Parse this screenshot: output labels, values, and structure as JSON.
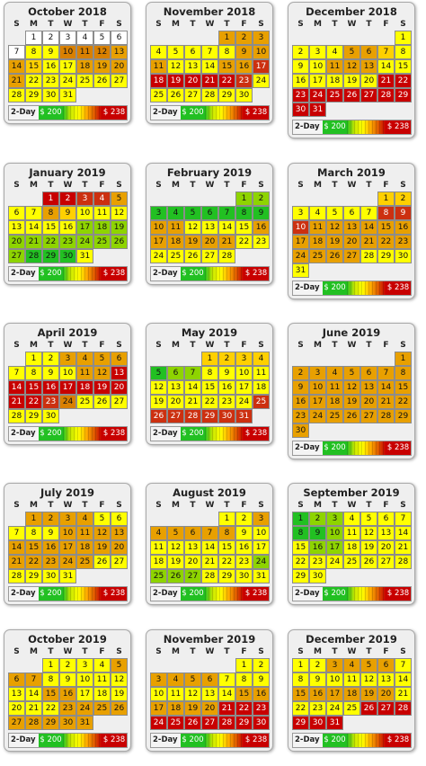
{
  "weekday_labels": [
    "S",
    "M",
    "T",
    "W",
    "T",
    "F",
    "S"
  ],
  "legend": {
    "label": "2-Day",
    "min_price": "$ 200",
    "max_price": "$ 238"
  },
  "price_colors": {
    "1": "#ffff00",
    "2": "#ffd000",
    "3": "#e8a000",
    "4": "#d98000",
    "5": "#d86a1a",
    "6": "#cc3010",
    "7": "#c80000",
    "8": "#22c022",
    "9": "#8ed400",
    "0": "#ffffff"
  },
  "calendars": [
    {
      "title": "October 2018",
      "first_weekday": 1,
      "days": 31,
      "levels": "0000000114443321133331111111111"
    },
    {
      "title": "November 2018",
      "first_weekday": 4,
      "days": 30,
      "levels": "333111113331113367777761111111"
    },
    {
      "title": "December 2018",
      "first_weekday": 6,
      "days": 31,
      "levels": "1111332111333111111177777777777"
    },
    {
      "title": "January 2019",
      "first_weekday": 2,
      "days": 31,
      "levels": "7766311321111111999999999998881"
    },
    {
      "title": "February 2019",
      "first_weekday": 5,
      "days": 28,
      "levels": "9988888883311113333331111111"
    },
    {
      "title": "March 2019",
      "first_weekday": 5,
      "days": 31,
      "levels": "2211111666333333333333333331111"
    },
    {
      "title": "April 2019",
      "first_weekday": 1,
      "days": 30,
      "levels": "113333111133777777777764111111"
    },
    {
      "title": "May 2019",
      "first_weekday": 3,
      "days": 31,
      "levels": "2222899111111111111111116666666"
    },
    {
      "title": "June 2019",
      "first_weekday": 6,
      "days": 30,
      "levels": "333333333333333333333333333333"
    },
    {
      "title": "July 2019",
      "first_weekday": 1,
      "days": 31,
      "levels": "3333111113333333333333333111111"
    },
    {
      "title": "August 2019",
      "first_weekday": 4,
      "days": 31,
      "levels": "1133333311111111111111199991111"
    },
    {
      "title": "September 2019",
      "first_weekday": 0,
      "days": 30,
      "levels": "899111188911111991111111111111"
    },
    {
      "title": "October 2019",
      "first_weekday": 2,
      "days": 31,
      "levels": "1111333111111133111111333333333"
    },
    {
      "title": "November 2019",
      "first_weekday": 5,
      "days": 30,
      "levels": "113333111111113333337777777777"
    },
    {
      "title": "December 2019",
      "first_weekday": 0,
      "days": 31,
      "levels": "1133331111111133333311111777777"
    }
  ]
}
